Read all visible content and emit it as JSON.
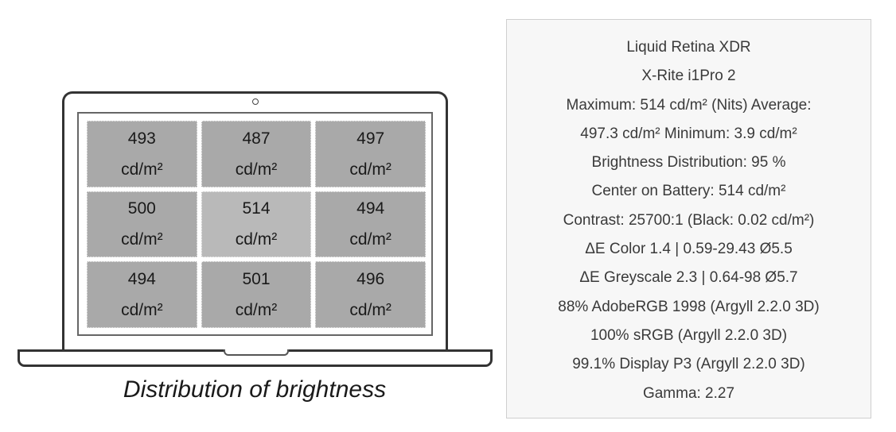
{
  "distribution": {
    "caption": "Distribution of brightness",
    "unit": "cd/m²",
    "cells": [
      {
        "value": "493",
        "unit": "cd/m²"
      },
      {
        "value": "487",
        "unit": "cd/m²"
      },
      {
        "value": "497",
        "unit": "cd/m²"
      },
      {
        "value": "500",
        "unit": "cd/m²"
      },
      {
        "value": "514",
        "unit": "cd/m²"
      },
      {
        "value": "494",
        "unit": "cd/m²"
      },
      {
        "value": "494",
        "unit": "cd/m²"
      },
      {
        "value": "501",
        "unit": "cd/m²"
      },
      {
        "value": "496",
        "unit": "cd/m²"
      }
    ],
    "colors": {
      "cell": "#a9a9a9",
      "cell_brightest": "#b9b9b9"
    }
  },
  "info": {
    "lines": [
      "Liquid Retina XDR",
      "X-Rite i1Pro 2",
      "Maximum: 514 cd/m² (Nits) Average:",
      "497.3 cd/m² Minimum: 3.9 cd/m²",
      "Brightness Distribution: 95 %",
      "Center on Battery: 514 cd/m²",
      "Contrast: 25700:1 (Black: 0.02 cd/m²)",
      "ΔE Color 1.4 | 0.59-29.43 Ø5.5",
      "ΔE Greyscale 2.3 | 0.64-98 Ø5.7",
      "88% AdobeRGB 1998 (Argyll 2.2.0 3D)",
      "100% sRGB (Argyll 2.2.0 3D)",
      "99.1% Display P3 (Argyll 2.2.0 3D)",
      "Gamma: 2.27"
    ]
  }
}
